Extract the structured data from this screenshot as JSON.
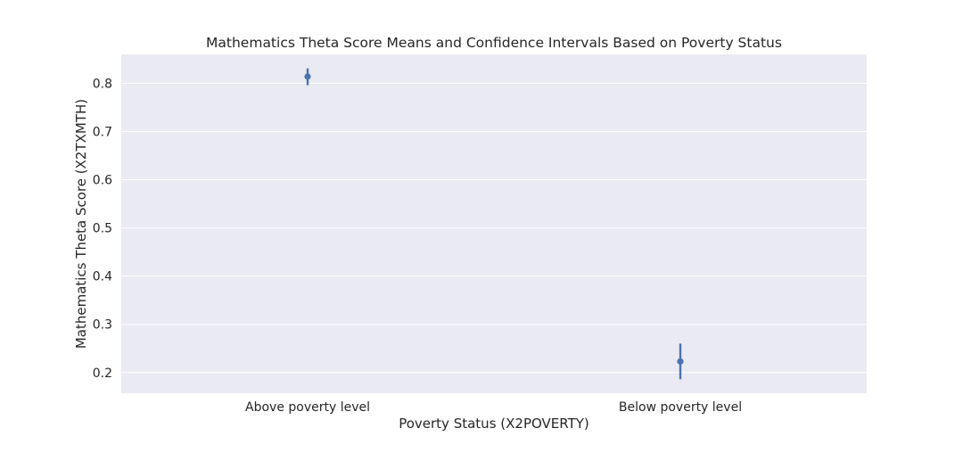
{
  "chart_data": {
    "type": "pointplot",
    "title": "Mathematics Theta Score Means and Confidence Intervals Based on Poverty Status",
    "xlabel": "Poverty Status (X2POVERTY)",
    "ylabel": "Mathematics Theta Score (X2TXMTH)",
    "categories": [
      "Above poverty level",
      "Below poverty level"
    ],
    "series": [
      {
        "means": [
          0.814,
          0.223
        ],
        "ci_low": [
          0.796,
          0.186
        ],
        "ci_high": [
          0.831,
          0.26
        ]
      }
    ],
    "ylim": [
      0.157,
      0.86
    ],
    "yticks": [
      0.2,
      0.3,
      0.4,
      0.5,
      0.6,
      0.7,
      0.8
    ],
    "ytick_labels": [
      "0.2",
      "0.3",
      "0.4",
      "0.5",
      "0.6",
      "0.7",
      "0.8"
    ],
    "grid": true,
    "legend": "none"
  },
  "colors": {
    "axes_background": "#eaeaf2",
    "grid": "#ffffff",
    "series": "#4c72b0",
    "text": "#262626"
  }
}
